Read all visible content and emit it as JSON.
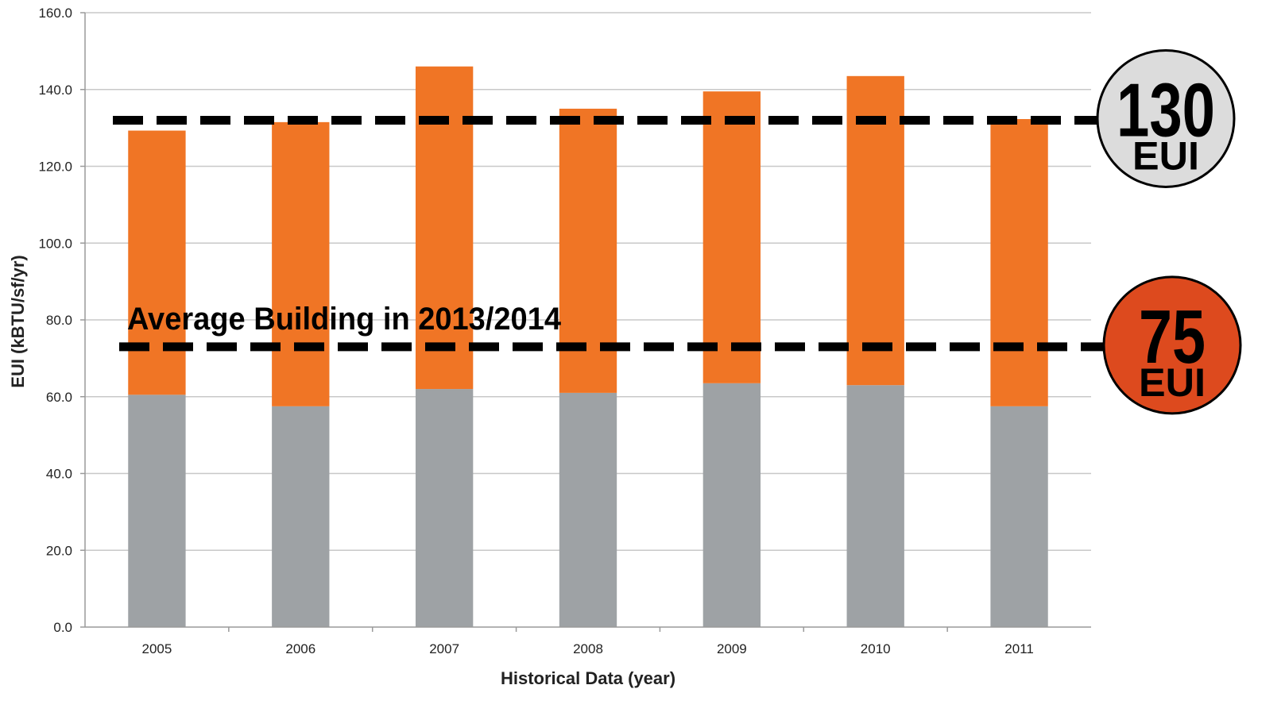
{
  "chart_data": {
    "type": "bar",
    "stacked": true,
    "categories": [
      "2005",
      "2006",
      "2007",
      "2008",
      "2009",
      "2010",
      "2011"
    ],
    "series": [
      {
        "values": [
          60.5,
          57.5,
          62.0,
          61.0,
          63.5,
          63.0,
          57.5
        ],
        "color": "#9ea2a5"
      },
      {
        "values": [
          68.8,
          74.0,
          84.0,
          74.0,
          76.0,
          80.5,
          74.8
        ],
        "color": "#f07525"
      }
    ],
    "xlabel": "Historical Data (year)",
    "ylabel": "EUI (kBTU/sf/yr)",
    "ylim": [
      0,
      160
    ],
    "yticks": [
      "0.0",
      "20.0",
      "40.0",
      "60.0",
      "80.0",
      "100.0",
      "120.0",
      "140.0",
      "160.0"
    ],
    "grid": true,
    "reference_lines": [
      {
        "value": 132,
        "badge_value": "130",
        "badge_unit": "EUI",
        "badge_fill": "#dcdcdc"
      },
      {
        "value": 73,
        "badge_value": "75",
        "badge_unit": "EUI",
        "badge_fill": "#dd4a1e",
        "label": "Average Building in 2013/2014"
      }
    ]
  }
}
